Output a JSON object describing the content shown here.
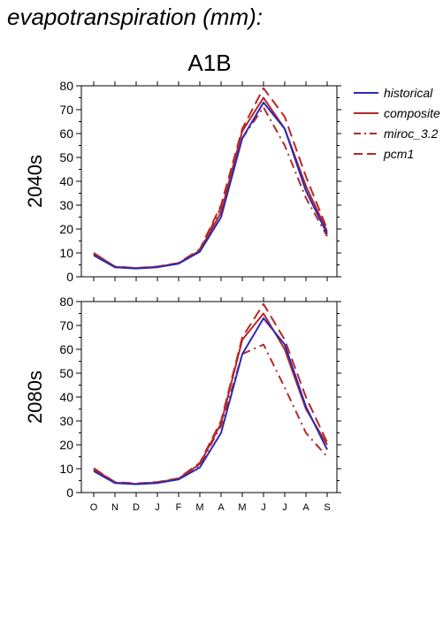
{
  "figure": {
    "title": "evapotranspiration (mm):",
    "scenario": "A1B"
  },
  "colors": {
    "historical": "#2a2ab8",
    "composite": "#b52828",
    "miroc_3.2": "#b52828",
    "pcm1": "#b52828"
  },
  "legend": {
    "placement": "right",
    "entries": [
      {
        "name": "historical",
        "style": "solid",
        "color": "#2a2ab8"
      },
      {
        "name": "composite",
        "style": "solid",
        "color": "#b52828"
      },
      {
        "name": "miroc_3.2",
        "style": "dashdot",
        "color": "#b52828"
      },
      {
        "name": "pcm1",
        "style": "dashed",
        "color": "#b52828"
      }
    ]
  },
  "chart_data": [
    {
      "type": "line",
      "panel_label": "2040s",
      "x": [
        "O",
        "N",
        "D",
        "J",
        "F",
        "M",
        "A",
        "M",
        "J",
        "J",
        "A",
        "S"
      ],
      "ylim": [
        0,
        80
      ],
      "yticks": [
        0,
        10,
        20,
        30,
        40,
        50,
        60,
        70,
        80
      ],
      "grid": false,
      "series": [
        {
          "name": "historical",
          "values": [
            9,
            4,
            3.5,
            4,
            5.5,
            10.5,
            25,
            58,
            73,
            62,
            36,
            18
          ]
        },
        {
          "name": "composite",
          "values": [
            10,
            4.2,
            3.6,
            4.2,
            5.7,
            11,
            27,
            61,
            75,
            62,
            38,
            19
          ]
        },
        {
          "name": "miroc_3.2",
          "values": [
            9.5,
            4,
            3.6,
            4.1,
            5.6,
            11,
            29,
            58,
            71,
            55,
            33,
            17
          ]
        },
        {
          "name": "pcm1",
          "values": [
            9.8,
            4.3,
            3.7,
            4.3,
            5.8,
            11.5,
            30,
            62,
            79,
            67,
            42,
            20
          ]
        }
      ]
    },
    {
      "type": "line",
      "panel_label": "2080s",
      "x": [
        "O",
        "N",
        "D",
        "J",
        "F",
        "M",
        "A",
        "M",
        "J",
        "J",
        "A",
        "S"
      ],
      "ylim": [
        0,
        80
      ],
      "yticks": [
        0,
        10,
        20,
        30,
        40,
        50,
        60,
        70,
        80
      ],
      "grid": false,
      "series": [
        {
          "name": "historical",
          "values": [
            9,
            4,
            3.5,
            4,
            5.5,
            10.5,
            25,
            58,
            73,
            62,
            36,
            18
          ]
        },
        {
          "name": "composite",
          "values": [
            10,
            4.2,
            3.6,
            4.3,
            5.8,
            12,
            29,
            64,
            75,
            60,
            35,
            20
          ]
        },
        {
          "name": "miroc_3.2",
          "values": [
            9.6,
            4.1,
            3.6,
            4.2,
            5.7,
            11.5,
            28,
            58,
            62,
            44,
            25,
            15
          ]
        },
        {
          "name": "pcm1",
          "values": [
            10.2,
            4.4,
            3.8,
            4.4,
            6,
            12.5,
            30,
            65,
            79,
            64,
            40,
            21
          ]
        }
      ]
    }
  ]
}
